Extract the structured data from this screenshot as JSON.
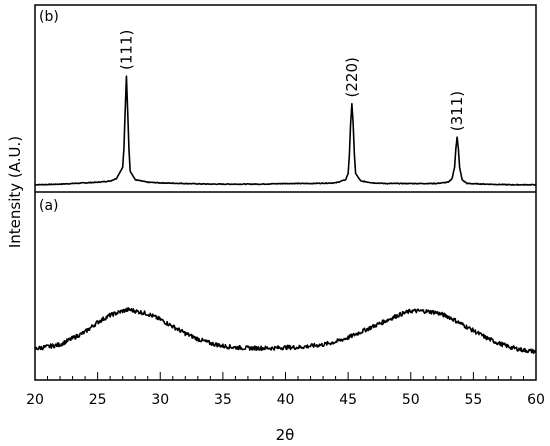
{
  "chart_data": [
    {
      "type": "line",
      "panel_label": "(b)",
      "xlabel": "2θ",
      "ylabel": "Intensity (A.U.)",
      "xlim": [
        20,
        60
      ],
      "x_ticks": [
        20,
        25,
        30,
        35,
        40,
        45,
        50,
        55,
        60
      ],
      "grid": false,
      "peaks": [
        {
          "label": "(111)",
          "x": 27.3,
          "height": 0.88
        },
        {
          "label": "(220)",
          "x": 45.3,
          "height": 0.66
        },
        {
          "label": "(311)",
          "x": 53.7,
          "height": 0.39
        }
      ],
      "series": [
        {
          "x": [
            20,
            21,
            22,
            23,
            24,
            25,
            26,
            26.5,
            27,
            27.1,
            27.2,
            27.3,
            27.4,
            27.5,
            27.6,
            28,
            29,
            30,
            32,
            34,
            36,
            38,
            40,
            42,
            44,
            44.8,
            45,
            45.1,
            45.2,
            45.3,
            45.4,
            45.5,
            45.6,
            46,
            47,
            48,
            50,
            52,
            53,
            53.3,
            53.5,
            53.6,
            53.7,
            53.8,
            53.9,
            54.1,
            54.5,
            56,
            58,
            60
          ],
          "y": [
            0.01,
            0.012,
            0.015,
            0.02,
            0.025,
            0.03,
            0.04,
            0.06,
            0.15,
            0.3,
            0.6,
            0.88,
            0.6,
            0.3,
            0.12,
            0.05,
            0.03,
            0.025,
            0.02,
            0.015,
            0.015,
            0.015,
            0.02,
            0.02,
            0.025,
            0.05,
            0.1,
            0.25,
            0.5,
            0.66,
            0.5,
            0.25,
            0.1,
            0.04,
            0.025,
            0.02,
            0.02,
            0.02,
            0.03,
            0.06,
            0.15,
            0.3,
            0.39,
            0.3,
            0.15,
            0.05,
            0.02,
            0.015,
            0.01,
            0.01
          ]
        }
      ]
    },
    {
      "type": "line",
      "panel_label": "(a)",
      "xlabel": "2θ",
      "ylabel": "Intensity (A.U.)",
      "xlim": [
        20,
        60
      ],
      "x_ticks": [
        20,
        25,
        30,
        35,
        40,
        45,
        50,
        55,
        60
      ],
      "grid": false,
      "series": [
        {
          "x": [
            20,
            22,
            24,
            25,
            26,
            27,
            27.5,
            28,
            29,
            30,
            31,
            32,
            33,
            34,
            35,
            36,
            37,
            38,
            39,
            40,
            41,
            42,
            43,
            44,
            45,
            46,
            47,
            48,
            49,
            50,
            51,
            52,
            53,
            54,
            55,
            56,
            57,
            58,
            59,
            60
          ],
          "y": [
            0.08,
            0.11,
            0.2,
            0.27,
            0.32,
            0.35,
            0.36,
            0.35,
            0.33,
            0.29,
            0.24,
            0.19,
            0.15,
            0.12,
            0.1,
            0.09,
            0.085,
            0.085,
            0.085,
            0.09,
            0.09,
            0.1,
            0.11,
            0.13,
            0.16,
            0.2,
            0.24,
            0.28,
            0.32,
            0.35,
            0.35,
            0.34,
            0.31,
            0.26,
            0.21,
            0.16,
            0.12,
            0.09,
            0.07,
            0.06
          ]
        }
      ]
    }
  ]
}
